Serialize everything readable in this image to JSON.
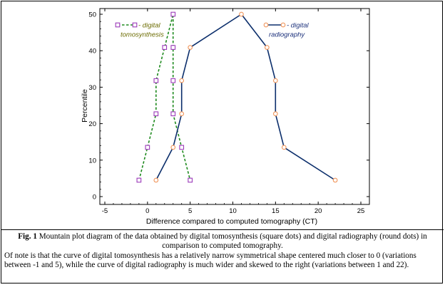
{
  "chart_data": {
    "type": "line",
    "xlabel": "Difference compared to computed tomography (CT)",
    "ylabel": "Percentile",
    "xlim": [
      -6,
      26
    ],
    "ylim": [
      -2,
      51
    ],
    "xticks": [
      -5,
      0,
      5,
      10,
      15,
      20,
      25
    ],
    "yticks": [
      0,
      10,
      20,
      30,
      40,
      50
    ],
    "grid": false,
    "series": [
      {
        "name": "- digital tomosynthesis",
        "legend_lines": [
          "- digital",
          "tomosynthesis"
        ],
        "marker": "square",
        "line_style": "dashed",
        "line_color": "#1e8a1e",
        "marker_color": "#9b39b9",
        "points": [
          {
            "x": -1,
            "y": 4.5
          },
          {
            "x": 0,
            "y": 13.5
          },
          {
            "x": 1,
            "y": 22.7
          },
          {
            "x": 1,
            "y": 31.8
          },
          {
            "x": 2,
            "y": 40.9
          },
          {
            "x": 3,
            "y": 50
          },
          {
            "x": 3,
            "y": 40.9
          },
          {
            "x": 3,
            "y": 31.8
          },
          {
            "x": 3,
            "y": 22.7
          },
          {
            "x": 4,
            "y": 13.5
          },
          {
            "x": 5,
            "y": 4.5
          }
        ]
      },
      {
        "name": "- digital radiography",
        "legend_lines": [
          "- digital",
          "radiography"
        ],
        "marker": "circle",
        "line_style": "solid",
        "line_color": "#0b2e6b",
        "marker_color": "#f0955a",
        "points": [
          {
            "x": 1,
            "y": 4.5
          },
          {
            "x": 3,
            "y": 13.5
          },
          {
            "x": 4,
            "y": 22.7
          },
          {
            "x": 4,
            "y": 31.8
          },
          {
            "x": 5,
            "y": 40.9
          },
          {
            "x": 11,
            "y": 50
          },
          {
            "x": 14,
            "y": 40.9
          },
          {
            "x": 15,
            "y": 31.8
          },
          {
            "x": 15,
            "y": 22.7
          },
          {
            "x": 16,
            "y": 13.5
          },
          {
            "x": 22,
            "y": 4.5
          }
        ]
      }
    ]
  },
  "caption": {
    "label": "Fig. 1",
    "line1": " Mountain plot diagram of the data obtained by digital tomosynthesis (square dots) and digital radiography (round dots) in comparison to computed tomography.",
    "line2": "Of note is that the curve of digital tomosynthesis has a relatively narrow symmetrical shape centered much closer to 0 (variations between -1 and 5), while the curve of digital radiography is much wider and skewed to the right (variations between 1 and 22)."
  }
}
